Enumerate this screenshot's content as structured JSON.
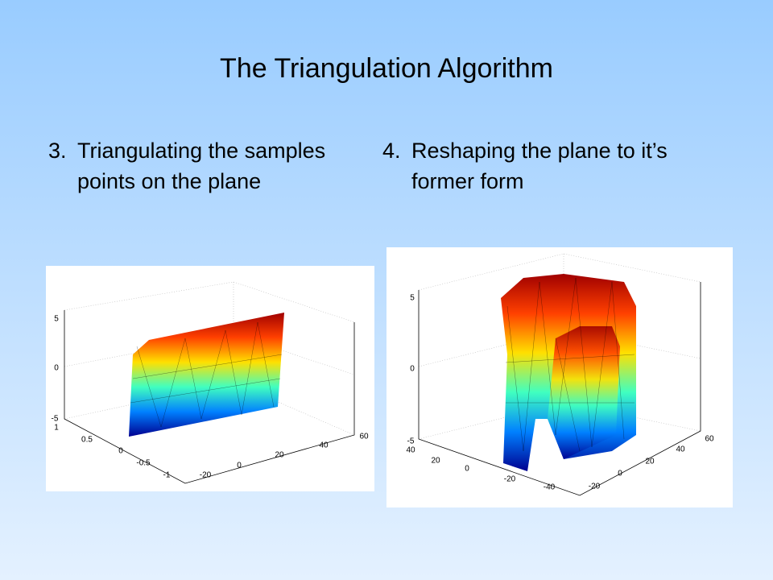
{
  "title": "The Triangulation Algorithm",
  "items": [
    {
      "number": "3.",
      "text": "Triangulating the samples points on the plane"
    },
    {
      "number": "4.",
      "text": "Reshaping the plane to it’s former form"
    }
  ],
  "figures": [
    {
      "z_ticks": [
        "5",
        "0",
        "-5"
      ],
      "y_ticks": [
        "1",
        "0.5",
        "0",
        "-0.5",
        "-1"
      ],
      "x_ticks": [
        "-20",
        "0",
        "20",
        "40",
        "60"
      ]
    },
    {
      "z_ticks": [
        "5",
        "0",
        "-5"
      ],
      "y_ticks": [
        "40",
        "20",
        "0",
        "-20",
        "-40"
      ],
      "x_ticks": [
        "-20",
        "0",
        "20",
        "40",
        "60"
      ]
    }
  ]
}
